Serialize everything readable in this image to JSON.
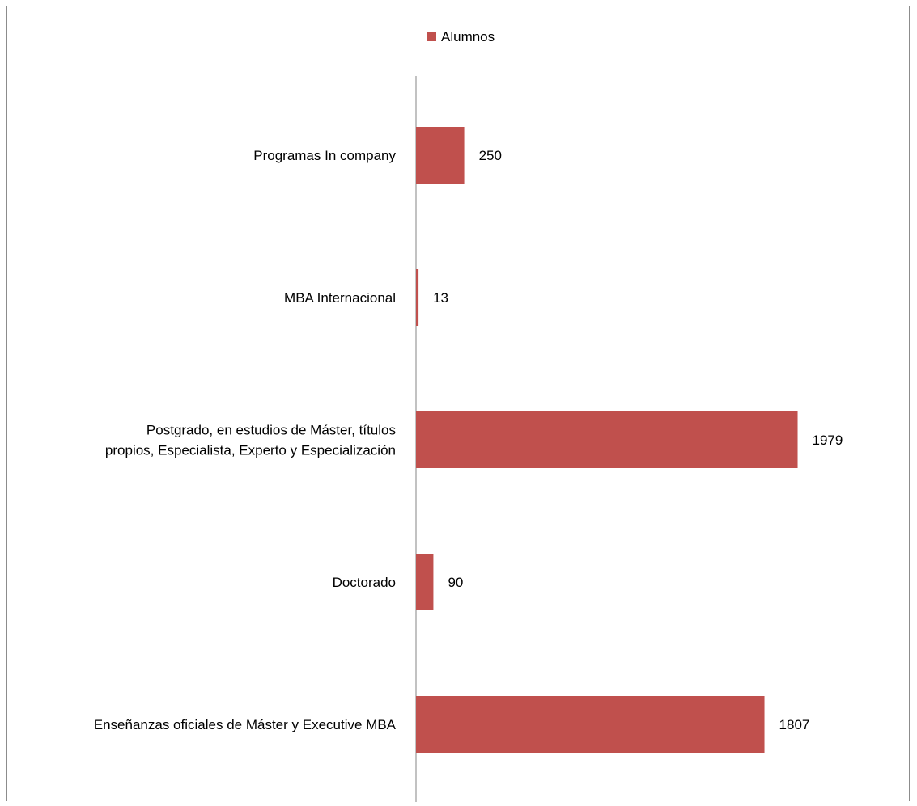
{
  "chart_data": {
    "type": "bar",
    "orientation": "horizontal",
    "categories": [
      "Programas In company",
      "MBA Internacional",
      "Postgrado, en estudios de Máster, títulos propios, Especialista,  Experto y Especialización",
      "Doctorado",
      "Enseñanzas oficiales de Máster y Executive MBA"
    ],
    "category_lines": [
      [
        "Programas In company"
      ],
      [
        "MBA Internacional"
      ],
      [
        "Postgrado, en estudios de Máster, títulos",
        "propios, Especialista,  Experto y Especialización"
      ],
      [
        "Doctorado"
      ],
      [
        "Enseñanzas oficiales de Máster y Executive MBA"
      ]
    ],
    "series": [
      {
        "name": "Alumnos",
        "values": [
          250,
          13,
          1979,
          90,
          1807
        ],
        "color": "#c0504d"
      }
    ],
    "data_labels": [
      "250",
      "13",
      "1979",
      "90",
      "1807"
    ],
    "xlim": [
      0,
      2300
    ],
    "grid": false,
    "legend_position": "top"
  }
}
